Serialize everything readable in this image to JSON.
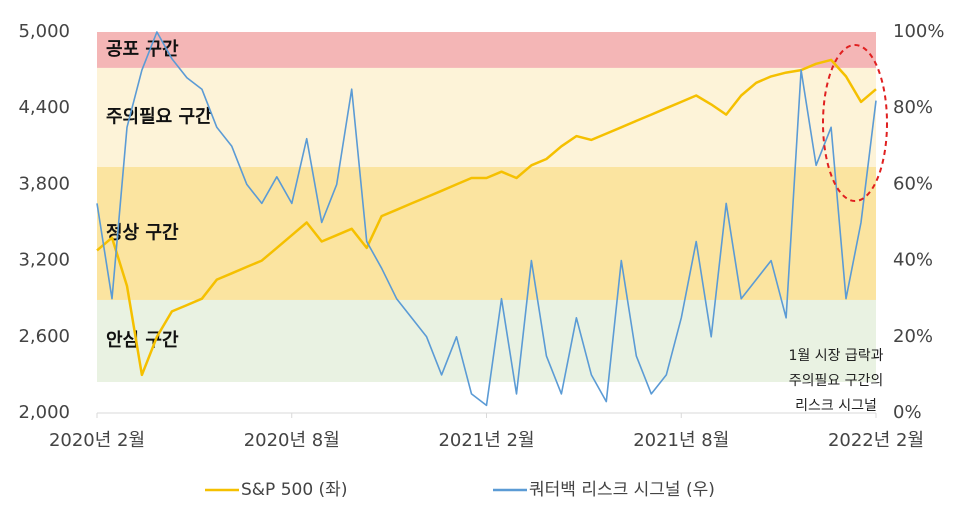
{
  "chart_data": {
    "type": "line",
    "categories": [
      "2020년 2월",
      null,
      null,
      null,
      null,
      null,
      null,
      null,
      null,
      null,
      null,
      null,
      null,
      "2020년 8월",
      null,
      null,
      null,
      null,
      null,
      null,
      null,
      null,
      null,
      null,
      null,
      null,
      "2021년 2월",
      null,
      null,
      null,
      null,
      null,
      null,
      null,
      null,
      null,
      null,
      null,
      null,
      "2021년 8월",
      null,
      null,
      null,
      null,
      null,
      null,
      null,
      null,
      null,
      null,
      null,
      null,
      "2022년 2월"
    ],
    "series": [
      {
        "name": "S&P 500 (좌)",
        "color": "#f5c000",
        "axis": "y",
        "values": [
          3280,
          3380,
          3000,
          2300,
          2600,
          2800,
          2850,
          2900,
          3050,
          3100,
          3150,
          3200,
          3300,
          3400,
          3500,
          3350,
          3400,
          3450,
          3300,
          3550,
          3600,
          3650,
          3700,
          3750,
          3800,
          3850,
          3850,
          3900,
          3850,
          3950,
          4000,
          4100,
          4180,
          4150,
          4200,
          4250,
          4300,
          4350,
          4400,
          4450,
          4500,
          4430,
          4350,
          4500,
          4600,
          4650,
          4680,
          4700,
          4750,
          4780,
          4650,
          4450,
          4550
        ]
      },
      {
        "name": "쿼터백 리스크 시그널 (우)",
        "color": "#5b9bd5",
        "axis": "y2",
        "values": [
          55,
          30,
          75,
          90,
          100,
          93,
          88,
          85,
          75,
          70,
          60,
          55,
          62,
          55,
          72,
          50,
          60,
          85,
          45,
          38,
          30,
          25,
          20,
          10,
          20,
          5,
          2,
          30,
          5,
          40,
          15,
          5,
          25,
          10,
          3,
          40,
          15,
          5,
          10,
          25,
          45,
          20,
          55,
          30,
          35,
          40,
          25,
          90,
          65,
          75,
          30,
          50,
          82
        ]
      }
    ],
    "ylim": [
      2000,
      5000
    ],
    "yticks": [
      {
        "value": 2000,
        "label": "2,000"
      },
      {
        "value": 2600,
        "label": "2,600"
      },
      {
        "value": 3200,
        "label": "3,200"
      },
      {
        "value": 3800,
        "label": "3,800"
      },
      {
        "value": 4400,
        "label": "4,400"
      },
      {
        "value": 5000,
        "label": "5,000"
      }
    ],
    "y2lim": [
      0,
      100
    ],
    "y2ticks": [
      {
        "value": 0,
        "label": "0%"
      },
      {
        "value": 20,
        "label": "20%"
      },
      {
        "value": 40,
        "label": "40%"
      },
      {
        "value": 60,
        "label": "60%"
      },
      {
        "value": 80,
        "label": "80%"
      },
      {
        "value": 100,
        "label": "100%"
      }
    ],
    "zones": [
      {
        "label": "공포 구간",
        "range": [
          4717,
          5000
        ],
        "color": "#f4b6b6"
      },
      {
        "label": "주의필요 구간",
        "range": [
          3937,
          4717
        ],
        "color": "#fdf3d8"
      },
      {
        "label": "정상 구간",
        "range": [
          2890,
          3937
        ],
        "color": "#fbe4a0"
      },
      {
        "label": "안심 구간",
        "range": [
          2244,
          2890
        ],
        "color": "#e9f2e2"
      }
    ],
    "annotation": [
      "1월 시장 급락과",
      "주의필요 구간의",
      "리스크 시그널"
    ],
    "legend": "bottom"
  }
}
